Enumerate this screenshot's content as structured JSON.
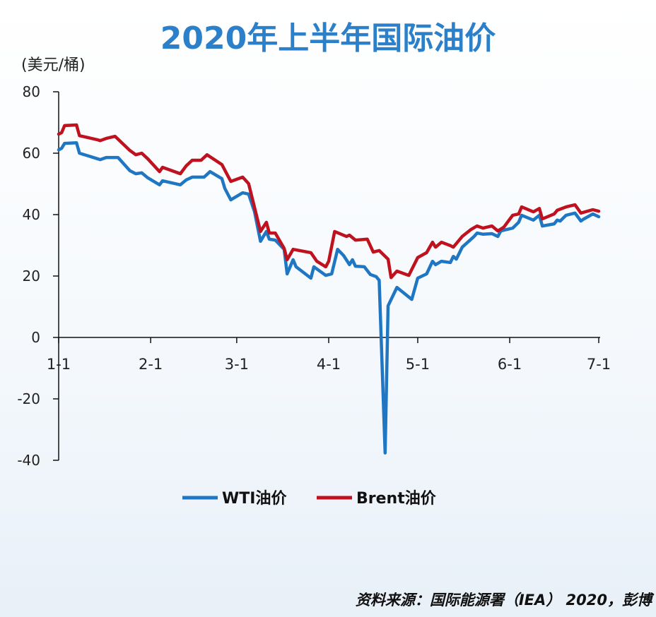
{
  "chart_data": {
    "type": "line",
    "title": "2020年上半年国际油价",
    "ylabel": "(美元/桶)",
    "xlabel": "",
    "x_ticks": [
      "1-1",
      "2-1",
      "3-1",
      "4-1",
      "5-1",
      "6-1",
      "7-1"
    ],
    "y_ticks": [
      80,
      60,
      40,
      20,
      0,
      -20,
      -40
    ],
    "ylim": [
      -40,
      80
    ],
    "xlim": [
      "01-01",
      "07-01"
    ],
    "grid": false,
    "legend": "bottom",
    "source": "资料来源：国际能源署（IEA） 2020，彭博",
    "series": [
      {
        "name": "WTI油价",
        "color": "#1f77c4",
        "points": [
          [
            "01-01",
            61.1
          ],
          [
            "01-02",
            61.6
          ],
          [
            "01-03",
            63.2
          ],
          [
            "01-07",
            63.4
          ],
          [
            "01-08",
            60
          ],
          [
            "01-14",
            58.2
          ],
          [
            "01-15",
            57.9
          ],
          [
            "01-17",
            58.6
          ],
          [
            "01-21",
            58.6
          ],
          [
            "01-25",
            54.3
          ],
          [
            "01-27",
            53.3
          ],
          [
            "01-29",
            53.6
          ],
          [
            "01-31",
            52
          ],
          [
            "02-04",
            49.7
          ],
          [
            "02-05",
            51
          ],
          [
            "02-11",
            49.7
          ],
          [
            "02-13",
            51.3
          ],
          [
            "02-15",
            52.2
          ],
          [
            "02-19",
            52.2
          ],
          [
            "02-21",
            54
          ],
          [
            "02-25",
            51.7
          ],
          [
            "02-26",
            48.5
          ],
          [
            "02-28",
            44.8
          ],
          [
            "03-03",
            47.1
          ],
          [
            "03-05",
            46.7
          ],
          [
            "03-07",
            40.9
          ],
          [
            "03-09",
            31.3
          ],
          [
            "03-11",
            34.5
          ],
          [
            "03-12",
            32
          ],
          [
            "03-14",
            31.7
          ],
          [
            "03-17",
            28.7
          ],
          [
            "03-18",
            20.7
          ],
          [
            "03-20",
            25.3
          ],
          [
            "03-21",
            23
          ],
          [
            "03-26",
            19.3
          ],
          [
            "03-27",
            23
          ],
          [
            "03-31",
            20.2
          ],
          [
            "04-02",
            20.7
          ],
          [
            "04-04",
            28.7
          ],
          [
            "04-06",
            26.7
          ],
          [
            "04-08",
            23.7
          ],
          [
            "04-09",
            25.3
          ],
          [
            "04-10",
            23.2
          ],
          [
            "04-13",
            23
          ],
          [
            "04-15",
            20.5
          ],
          [
            "04-17",
            19.8
          ],
          [
            "04-18",
            18.6
          ],
          [
            "04-20",
            -37.6
          ],
          [
            "04-21",
            10.3
          ],
          [
            "04-24",
            16.3
          ],
          [
            "04-29",
            12.4
          ],
          [
            "05-01",
            19.3
          ],
          [
            "05-04",
            20.7
          ],
          [
            "05-06",
            24.8
          ],
          [
            "05-07",
            23.7
          ],
          [
            "05-09",
            24.8
          ],
          [
            "05-12",
            24.4
          ],
          [
            "05-13",
            26.4
          ],
          [
            "05-14",
            25.5
          ],
          [
            "05-16",
            29.4
          ],
          [
            "05-20",
            32.9
          ],
          [
            "05-21",
            34
          ],
          [
            "05-23",
            33.6
          ],
          [
            "05-26",
            33.8
          ],
          [
            "05-28",
            32.9
          ],
          [
            "05-29",
            34.7
          ],
          [
            "06-02",
            35.6
          ],
          [
            "06-04",
            37.5
          ],
          [
            "06-05",
            39.8
          ],
          [
            "06-09",
            38.2
          ],
          [
            "06-11",
            39.8
          ],
          [
            "06-12",
            36.3
          ],
          [
            "06-16",
            37
          ],
          [
            "06-17",
            38.2
          ],
          [
            "06-18",
            37.9
          ],
          [
            "06-20",
            39.8
          ],
          [
            "06-23",
            40.5
          ],
          [
            "06-25",
            37.9
          ],
          [
            "06-26",
            38.6
          ],
          [
            "06-29",
            40.2
          ],
          [
            "07-01",
            39.3
          ]
        ]
      },
      {
        "name": "Brent油价",
        "color": "#c0111f",
        "points": [
          [
            "01-01",
            66.2
          ],
          [
            "01-02",
            66.7
          ],
          [
            "01-03",
            69
          ],
          [
            "01-07",
            69.2
          ],
          [
            "01-08",
            65.7
          ],
          [
            "01-14",
            64.4
          ],
          [
            "01-15",
            64.1
          ],
          [
            "01-17",
            64.8
          ],
          [
            "01-20",
            65.5
          ],
          [
            "01-25",
            60.9
          ],
          [
            "01-27",
            59.5
          ],
          [
            "01-29",
            60
          ],
          [
            "01-31",
            58.2
          ],
          [
            "02-04",
            54
          ],
          [
            "02-05",
            55.4
          ],
          [
            "02-11",
            53.3
          ],
          [
            "02-13",
            55.9
          ],
          [
            "02-15",
            57.7
          ],
          [
            "02-18",
            57.7
          ],
          [
            "02-20",
            59.5
          ],
          [
            "02-25",
            56.3
          ],
          [
            "02-28",
            50.8
          ],
          [
            "03-03",
            52.2
          ],
          [
            "03-05",
            50.1
          ],
          [
            "03-09",
            34.5
          ],
          [
            "03-11",
            37.5
          ],
          [
            "03-12",
            34
          ],
          [
            "03-14",
            34
          ],
          [
            "03-17",
            29
          ],
          [
            "03-18",
            25.3
          ],
          [
            "03-20",
            28.7
          ],
          [
            "03-26",
            27.6
          ],
          [
            "03-28",
            24.8
          ],
          [
            "03-31",
            23
          ],
          [
            "04-01",
            24.8
          ],
          [
            "04-03",
            34.5
          ],
          [
            "04-07",
            32.9
          ],
          [
            "04-08",
            33.3
          ],
          [
            "04-10",
            31.7
          ],
          [
            "04-14",
            32
          ],
          [
            "04-16",
            27.8
          ],
          [
            "04-18",
            28.3
          ],
          [
            "04-21",
            25.5
          ],
          [
            "04-22",
            19.5
          ],
          [
            "04-24",
            21.6
          ],
          [
            "04-28",
            20.2
          ],
          [
            "05-01",
            26
          ],
          [
            "05-04",
            27.6
          ],
          [
            "05-06",
            31
          ],
          [
            "05-07",
            29.4
          ],
          [
            "05-09",
            31
          ],
          [
            "05-12",
            29.9
          ],
          [
            "05-13",
            29.4
          ],
          [
            "05-16",
            32.9
          ],
          [
            "05-19",
            35.2
          ],
          [
            "05-21",
            36.3
          ],
          [
            "05-23",
            35.6
          ],
          [
            "05-26",
            36.3
          ],
          [
            "05-28",
            34.7
          ],
          [
            "05-30",
            35.9
          ],
          [
            "06-02",
            39.8
          ],
          [
            "06-04",
            40.2
          ],
          [
            "06-05",
            42.5
          ],
          [
            "06-09",
            40.9
          ],
          [
            "06-11",
            42
          ],
          [
            "06-12",
            38.6
          ],
          [
            "06-16",
            40.2
          ],
          [
            "06-17",
            41.4
          ],
          [
            "06-20",
            42.5
          ],
          [
            "06-23",
            43.2
          ],
          [
            "06-25",
            40.5
          ],
          [
            "06-29",
            41.6
          ],
          [
            "07-01",
            41.1
          ]
        ]
      }
    ]
  }
}
